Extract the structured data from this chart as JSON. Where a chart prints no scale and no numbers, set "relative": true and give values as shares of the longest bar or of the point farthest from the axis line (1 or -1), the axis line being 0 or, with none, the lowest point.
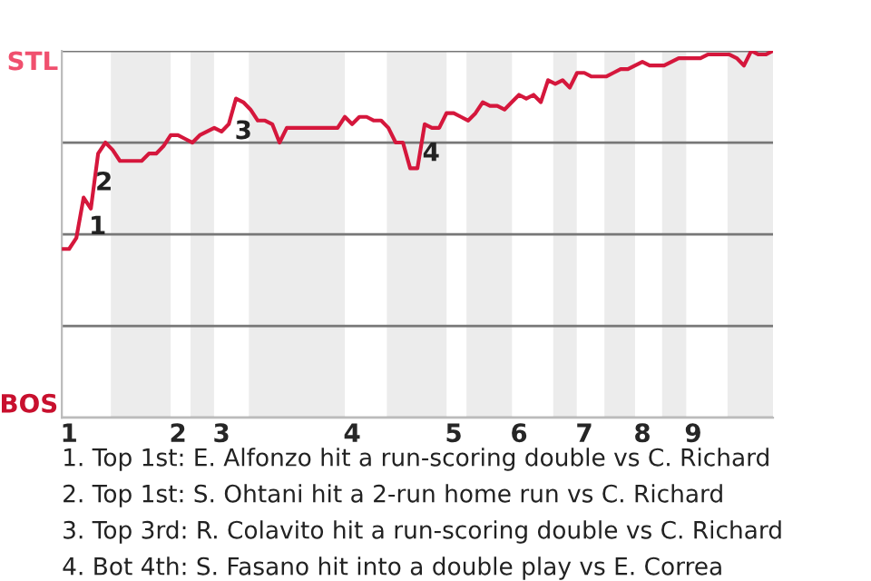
{
  "chart_data": {
    "type": "line",
    "relative": true,
    "categories": [
      null,
      "1",
      null,
      null,
      null,
      null,
      null,
      null,
      null,
      null,
      null,
      null,
      null,
      null,
      null,
      null,
      "2",
      null,
      null,
      null,
      null,
      null,
      "3",
      null,
      null,
      null,
      null,
      null,
      null,
      null,
      null,
      null,
      null,
      null,
      null,
      null,
      null,
      null,
      null,
      null,
      "4",
      null,
      null,
      null,
      null,
      null,
      null,
      null,
      null,
      null,
      null,
      null,
      null,
      null,
      "5",
      null,
      null,
      null,
      null,
      null,
      null,
      null,
      null,
      "6",
      null,
      null,
      null,
      null,
      null,
      null,
      null,
      null,
      "7",
      null,
      null,
      null,
      null,
      null,
      null,
      null,
      "8",
      null,
      null,
      null,
      null,
      null,
      null,
      "9",
      null,
      null,
      null,
      null,
      null,
      null,
      null,
      null,
      null,
      null,
      null
    ],
    "series": [
      {
        "color": "#d5173c",
        "values": [
          0.46,
          0.46,
          0.49,
          0.6,
          0.57,
          0.72,
          0.75,
          0.73,
          0.7,
          0.7,
          0.7,
          0.7,
          0.72,
          0.72,
          0.74,
          0.77,
          0.77,
          0.76,
          0.75,
          0.77,
          0.78,
          0.79,
          0.78,
          0.8,
          0.87,
          0.86,
          0.84,
          0.81,
          0.81,
          0.8,
          0.75,
          0.79,
          0.79,
          0.79,
          0.79,
          0.79,
          0.79,
          0.79,
          0.79,
          0.82,
          0.8,
          0.82,
          0.82,
          0.81,
          0.81,
          0.79,
          0.75,
          0.75,
          0.68,
          0.68,
          0.8,
          0.79,
          0.79,
          0.83,
          0.83,
          0.82,
          0.81,
          0.83,
          0.86,
          0.85,
          0.85,
          0.84,
          0.86,
          0.88,
          0.87,
          0.88,
          0.86,
          0.92,
          0.91,
          0.92,
          0.9,
          0.94,
          0.94,
          0.93,
          0.93,
          0.93,
          0.94,
          0.95,
          0.95,
          0.96,
          0.97,
          0.96,
          0.96,
          0.96,
          0.97,
          0.98,
          0.98,
          0.98,
          0.98,
          0.99,
          0.99,
          0.99,
          0.99,
          0.98,
          0.96,
          1.0,
          0.99,
          0.99,
          1.0
        ]
      }
    ],
    "grid": "y",
    "marker": "none",
    "line_style": "solid",
    "annotations": [
      "1",
      "2",
      "3",
      "4",
      "STL",
      "BOS",
      "1. Top 1st: E. Alfonzo hit a run-scoring double vs C. Richard",
      "2. Top 1st: S. Ohtani hit a 2-run home run vs C. Richard",
      "3. Top 3rd: R. Colavito hit a run-scoring double vs C. Richard",
      "4. Bot 4th: S. Fasano hit into a double play vs E. Correa"
    ]
  }
}
